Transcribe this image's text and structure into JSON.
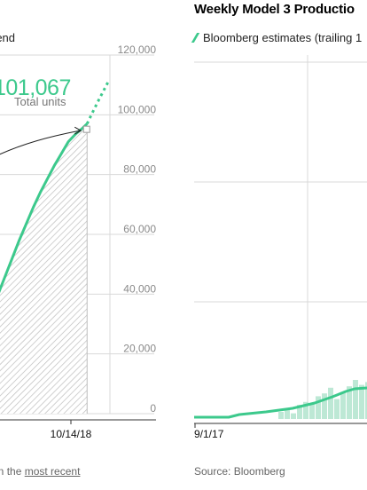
{
  "chart_data": [
    {
      "type": "line",
      "title": "",
      "legend": "rend",
      "annotation_value": "101,067",
      "annotation_label": "Total units",
      "x_tick_labels": [
        "10/14/18"
      ],
      "ylim": [
        0,
        120000
      ],
      "y_ticks": [
        "0",
        "20,000",
        "40,000",
        "60,000",
        "80,000",
        "100,000",
        "120,000"
      ],
      "grid": true,
      "footnote_prefix": "d on the ",
      "footnote_link": "most recent",
      "series": [
        {
          "name": "",
          "color": "#3cc98c",
          "values": [
            [
              0.0,
              35000
            ],
            [
              0.06,
              40000
            ],
            [
              0.12,
              46000
            ],
            [
              0.18,
              52000
            ],
            [
              0.24,
              58000
            ],
            [
              0.3,
              63500
            ],
            [
              0.36,
              69000
            ],
            [
              0.42,
              74000
            ],
            [
              0.48,
              78500
            ],
            [
              0.54,
              83000
            ],
            [
              0.6,
              87000
            ],
            [
              0.66,
              91000
            ],
            [
              0.72,
              93500
            ],
            [
              0.78,
              95500
            ],
            [
              0.82,
              97000
            ]
          ],
          "projection": [
            [
              0.82,
              97000
            ],
            [
              0.87,
              101067
            ],
            [
              0.92,
              105000
            ],
            [
              1.0,
              111000
            ]
          ]
        }
      ],
      "marker_value": 95000
    },
    {
      "type": "area",
      "title": "Weekly Model 3 Productio",
      "legend": "Bloomberg estimates (trailing 1",
      "x_tick_labels": [
        "9/1/17"
      ],
      "grid": true,
      "source": "Source: Bloomberg",
      "series": [
        {
          "name": "Bloomberg estimates (trailing 1",
          "color": "#3cc98c",
          "values": [
            0,
            0,
            0,
            0,
            0,
            0,
            0,
            0,
            0,
            0,
            0,
            0,
            0,
            0,
            0,
            0,
            0,
            0,
            0,
            0
          ]
        }
      ],
      "bars": [
        0,
        0,
        0,
        0,
        0,
        0,
        0,
        0,
        0,
        0,
        0,
        0,
        0,
        0,
        0,
        0,
        0,
        0,
        0,
        0
      ]
    }
  ]
}
